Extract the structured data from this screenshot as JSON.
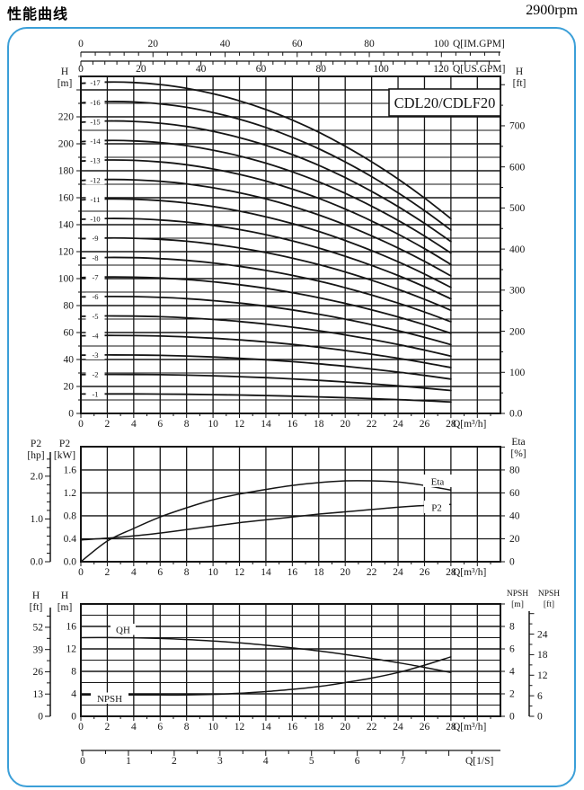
{
  "header": {
    "title": "性能曲线",
    "rpm": "2900rpm"
  },
  "frame": {
    "border_color": "#3b9fd8",
    "ink_color": "#151515"
  },
  "model_label": "CDL20/CDLF20",
  "chart_data": [
    {
      "id": "head-chart",
      "type": "line",
      "title": "CDL20/CDLF20",
      "x_axis_m3h": {
        "unit": "Q[m³/h]",
        "ticks": [
          0,
          2,
          4,
          6,
          8,
          10,
          12,
          14,
          16,
          18,
          20,
          22,
          24,
          26,
          28
        ],
        "grid_step": 2,
        "grid_max": 30,
        "range": [
          0,
          31.75
        ]
      },
      "x_axis_im_gpm": {
        "unit": "Q[IM.GPM]",
        "ticks": [
          0,
          20,
          40,
          60,
          80,
          100
        ],
        "minor_step": 4,
        "gpm_per_m3h": 3.6656
      },
      "x_axis_us_gpm": {
        "unit": "Q[US.GPM]",
        "ticks": [
          0,
          20,
          40,
          60,
          80,
          100,
          120
        ],
        "minor_step": 4,
        "gpm_per_m3h": 4.4029
      },
      "y_axis_m": {
        "unit": [
          "H",
          "[m]"
        ],
        "ticks": [
          0,
          20,
          40,
          60,
          80,
          100,
          120,
          140,
          160,
          180,
          200,
          220
        ],
        "minor_step": 10,
        "major_step": 20,
        "range": [
          0,
          250
        ]
      },
      "y_axis_ft": {
        "unit": [
          "H",
          "[ft]"
        ],
        "tick_labels": [
          "0.0",
          "100",
          "200",
          "300",
          "400",
          "500",
          "600",
          "700"
        ],
        "tick_values": [
          0,
          100,
          200,
          300,
          400,
          500,
          600,
          700
        ],
        "minor_step": 50,
        "max_tick": 800,
        "m_per_ft": 0.3048
      },
      "series": {
        "q": [
          0,
          2,
          4,
          6,
          8,
          10,
          12,
          14,
          16,
          18,
          20,
          22,
          24,
          26,
          28
        ],
        "per_stage_head_m": [
          14.4,
          14.46,
          14.44,
          14.35,
          14.19,
          13.95,
          13.64,
          13.26,
          12.8,
          12.27,
          11.66,
          10.98,
          10.23,
          9.4,
          8.5
        ],
        "stage_curves": [
          {
            "label": "-1",
            "stages": 1
          },
          {
            "label": "-2",
            "stages": 2
          },
          {
            "label": "-3",
            "stages": 3
          },
          {
            "label": "-4",
            "stages": 4
          },
          {
            "label": "-5",
            "stages": 5
          },
          {
            "label": "-6",
            "stages": 6
          },
          {
            "label": "-7",
            "stages": 7
          },
          {
            "label": "-8",
            "stages": 8
          },
          {
            "label": "-9",
            "stages": 9
          },
          {
            "label": "-10",
            "stages": 10
          },
          {
            "label": "-11",
            "stages": 11
          },
          {
            "label": "-12",
            "stages": 12
          },
          {
            "label": "-13",
            "stages": 13
          },
          {
            "label": "-14",
            "stages": 14
          },
          {
            "label": "-15",
            "stages": 15
          },
          {
            "label": "-16",
            "stages": 16
          },
          {
            "label": "-17",
            "stages": 17
          }
        ]
      }
    },
    {
      "id": "power-chart",
      "type": "line",
      "x_axis_m3h": {
        "unit": "Q[m³/h]",
        "ticks": [
          0,
          2,
          4,
          6,
          8,
          10,
          12,
          14,
          16,
          18,
          20,
          22,
          24,
          26,
          28
        ],
        "grid_step": 2,
        "grid_max": 30
      },
      "y_axis_kw": {
        "unit": [
          "P2",
          "[kW]"
        ],
        "ticks": [
          "0.0",
          "0.4",
          "0.8",
          "1.2",
          "1.6"
        ],
        "tick_values": [
          0,
          0.4,
          0.8,
          1.2,
          1.6
        ],
        "grid_step": 0.4,
        "range": [
          0,
          2.0
        ]
      },
      "y_axis_hp": {
        "unit": [
          "P2",
          "[hp]"
        ],
        "ticks": [
          "0.0",
          "1.0",
          "2.0"
        ],
        "tick_values": [
          0,
          1,
          2
        ],
        "minor_step": 0.2,
        "max_tick": 2.4,
        "kw_per_hp": 0.7457
      },
      "y_axis_eta": {
        "unit": [
          "Eta",
          "[%]"
        ],
        "ticks": [
          0,
          20,
          40,
          60,
          80
        ],
        "step": 20,
        "range": [
          0,
          100
        ]
      },
      "series": {
        "q": [
          0,
          2,
          4,
          6,
          8,
          10,
          12,
          14,
          16,
          18,
          20,
          22,
          24,
          26,
          28
        ],
        "p2_kw": [
          0.38,
          0.41,
          0.45,
          0.5,
          0.56,
          0.62,
          0.68,
          0.73,
          0.78,
          0.83,
          0.87,
          0.91,
          0.95,
          0.98,
          1.0
        ],
        "eta_pct": [
          0,
          18,
          29,
          39,
          47,
          54,
          59,
          63,
          66.5,
          69,
          70.5,
          70.5,
          69.5,
          66.5,
          62.5
        ]
      },
      "curve_labels": [
        {
          "text": "Eta",
          "series": "eta_pct"
        },
        {
          "text": "P2",
          "series": "p2_kw"
        }
      ]
    },
    {
      "id": "npsh-chart",
      "type": "line",
      "x_axis_m3h": {
        "unit": "Q[m³/h]",
        "ticks": [
          0,
          2,
          4,
          6,
          8,
          10,
          12,
          14,
          16,
          18,
          20,
          22,
          24,
          26,
          28
        ],
        "grid_step": 2,
        "grid_max": 30
      },
      "x_axis_ls": {
        "unit": "Q[1/S]",
        "ticks": [
          0,
          1,
          2,
          3,
          4,
          5,
          6,
          7
        ],
        "minor_step": 0.5,
        "max_tick": 8.5,
        "m3h_per_ls": 3.6
      },
      "y_axis_m": {
        "unit": [
          "H",
          "[m]"
        ],
        "ticks": [
          0,
          4,
          8,
          12,
          16
        ],
        "grid_step": 2,
        "range": [
          0,
          20
        ]
      },
      "y_axis_ft": {
        "unit": [
          "H",
          "[ft]"
        ],
        "ticks": [
          0,
          13,
          26,
          39,
          52
        ],
        "minor_step": 6.5,
        "max_tick": 58.5,
        "m_per_ft": 0.3048
      },
      "y_axis_npsh_m": {
        "unit": [
          "NPSH",
          "[m]"
        ],
        "ticks": [
          0,
          2,
          4,
          6,
          8
        ],
        "step": 2,
        "range": [
          0,
          10
        ]
      },
      "y_axis_npsh_ft": {
        "unit": [
          "NPSH",
          "[ft]"
        ],
        "ticks": [
          0,
          6,
          12,
          18,
          24
        ],
        "minor_step": 3,
        "max_tick": 30
      },
      "series": {
        "q": [
          0,
          2,
          4,
          6,
          8,
          10,
          12,
          14,
          16,
          18,
          20,
          22,
          24,
          26,
          28
        ],
        "qh_m": [
          14.0,
          14.02,
          13.98,
          13.86,
          13.67,
          13.4,
          13.07,
          12.66,
          12.18,
          11.63,
          11.01,
          10.31,
          9.55,
          8.71,
          7.8
        ],
        "npsh_m": [
          1.9,
          1.9,
          1.9,
          1.9,
          1.9,
          1.95,
          2.05,
          2.2,
          2.4,
          2.65,
          3.0,
          3.4,
          3.9,
          4.55,
          5.3
        ]
      },
      "curve_labels": [
        {
          "text": "QH",
          "series": "qh_m"
        },
        {
          "text": "NPSH",
          "series": "npsh_m"
        }
      ]
    }
  ]
}
